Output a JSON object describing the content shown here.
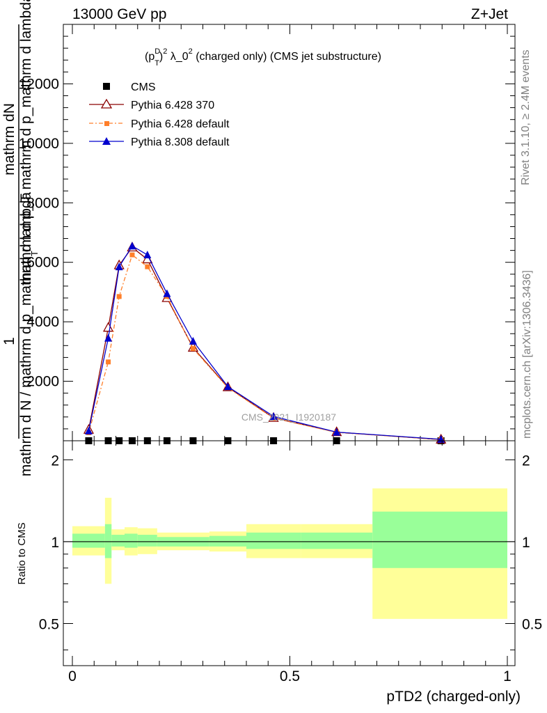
{
  "header": {
    "left": "13000 GeV pp",
    "right": "Z+Jet"
  },
  "side": {
    "rivet": "Rivet 3.1.10, ≥ 2.4M events",
    "mcplots": "mcplots.cern.ch [arXiv:1306.3436]"
  },
  "chart_data": [
    {
      "type": "line",
      "title": "(p_T^D)^2 λ_0^2 (charged only) (CMS jet substructure)",
      "title_parts": {
        "a": "(p",
        "sup1": "D",
        "sub1": "T",
        "b": ")",
        "sup2": "2",
        "c": " λ_0",
        "sup3": "2",
        "d": " (charged only) (CMS jet substructure)"
      },
      "ylabel_lines": [
        "mathrm dN",
        "1",
        "mathrm d N / mathrm d p_mathrm d lambda"
      ],
      "ylabel_overlay": "mathrm d p_T mathrm d p_mathrm d lambda",
      "ylabel_sub": "T",
      "watermark": "CMS_2021_I1920187",
      "xlim": [
        0,
        1
      ],
      "ylim": [
        0,
        14000
      ],
      "yticks": [
        2000,
        4000,
        6000,
        8000,
        10000,
        12000
      ],
      "ytick_labels": [
        "2000",
        "4000",
        "6000",
        "8000",
        "10000",
        "12000"
      ],
      "x": [
        0.0375,
        0.0825,
        0.1075,
        0.1375,
        0.1725,
        0.2175,
        0.2775,
        0.3575,
        0.4625,
        0.6075,
        0.8475
      ],
      "series": [
        {
          "name": "CMS",
          "color": "#000000",
          "marker": "square",
          "values": [
            0,
            0,
            0,
            0,
            0,
            0,
            0,
            0,
            0,
            0,
            0
          ]
        },
        {
          "name": "Pythia 6.428 370",
          "color": "#8b0000",
          "marker": "open-triangle",
          "values": [
            370,
            3800,
            5900,
            6500,
            6100,
            4800,
            3130,
            1800,
            770,
            290,
            40
          ]
        },
        {
          "name": "Pythia 6.428 default",
          "color": "#ff7f2a",
          "marker": "filled-square",
          "dash": "dash-dot",
          "values": [
            270,
            2650,
            4850,
            6250,
            5850,
            4850,
            3100,
            1780,
            760,
            280,
            40
          ]
        },
        {
          "name": "Pythia 8.308 default",
          "color": "#0000cd",
          "marker": "filled-triangle",
          "values": [
            330,
            3450,
            5850,
            6550,
            6250,
            4950,
            3350,
            1820,
            820,
            290,
            50
          ]
        }
      ]
    },
    {
      "type": "area",
      "ylabel": "Ratio to CMS",
      "xlabel": "pTD2 (charged-only)",
      "xlim": [
        0,
        1
      ],
      "ylim": [
        0.35,
        2.35
      ],
      "log_y": true,
      "yticks": [
        0.5,
        1,
        2
      ],
      "ytick_labels": [
        "0.5",
        "1",
        "2"
      ],
      "xticks": [
        0,
        0.5,
        1
      ],
      "xtick_labels": [
        "0",
        "0.5",
        "1"
      ],
      "reference_line": 1,
      "band_colors": {
        "outer": "#ffff99",
        "inner": "#99ff99"
      },
      "bins": [
        {
          "x0": 0.0,
          "x1": 0.075,
          "outer": [
            0.89,
            1.14
          ],
          "inner": [
            0.95,
            1.07
          ]
        },
        {
          "x0": 0.075,
          "x1": 0.09,
          "outer": [
            0.7,
            1.45
          ],
          "inner": [
            0.87,
            1.16
          ]
        },
        {
          "x0": 0.09,
          "x1": 0.12,
          "outer": [
            0.93,
            1.11
          ],
          "inner": [
            0.96,
            1.06
          ]
        },
        {
          "x0": 0.12,
          "x1": 0.15,
          "outer": [
            0.89,
            1.13
          ],
          "inner": [
            0.95,
            1.07
          ]
        },
        {
          "x0": 0.15,
          "x1": 0.195,
          "outer": [
            0.9,
            1.12
          ],
          "inner": [
            0.96,
            1.06
          ]
        },
        {
          "x0": 0.195,
          "x1": 0.24,
          "outer": [
            0.93,
            1.08
          ],
          "inner": [
            0.96,
            1.04
          ]
        },
        {
          "x0": 0.24,
          "x1": 0.315,
          "outer": [
            0.93,
            1.08
          ],
          "inner": [
            0.96,
            1.04
          ]
        },
        {
          "x0": 0.315,
          "x1": 0.4,
          "outer": [
            0.92,
            1.09
          ],
          "inner": [
            0.96,
            1.05
          ]
        },
        {
          "x0": 0.4,
          "x1": 0.525,
          "outer": [
            0.87,
            1.16
          ],
          "inner": [
            0.94,
            1.08
          ]
        },
        {
          "x0": 0.525,
          "x1": 0.69,
          "outer": [
            0.87,
            1.16
          ],
          "inner": [
            0.94,
            1.08
          ]
        },
        {
          "x0": 0.69,
          "x1": 1.0,
          "outer": [
            0.52,
            1.57
          ],
          "inner": [
            0.8,
            1.29
          ]
        }
      ]
    }
  ]
}
